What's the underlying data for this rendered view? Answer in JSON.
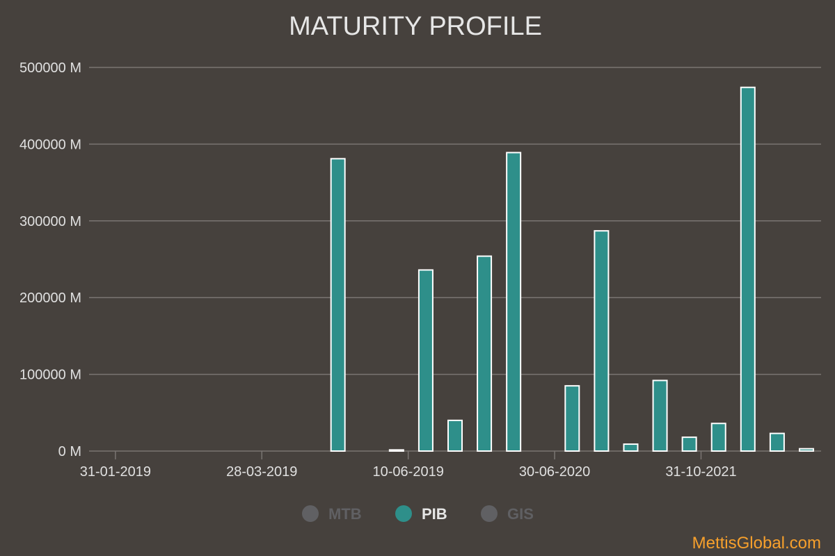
{
  "colors": {
    "background": "#46413d",
    "grid": "#7a7572",
    "bar_fill": "#2e8f8a",
    "bar_stroke": "#ffffff",
    "legend_inactive": "#606063",
    "text": "#e0e0e0",
    "credit": "#f7a02c"
  },
  "credit": "MettisGlobal.com",
  "chart_data": {
    "type": "bar",
    "title": "MATURITY PROFILE",
    "ylim": [
      0,
      500000
    ],
    "y_ticks": [
      "0 M",
      "100000 M",
      "200000 M",
      "300000 M",
      "400000 M",
      "500000 M"
    ],
    "x_ticks": [
      "31-01-2019",
      "28-03-2019",
      "10-06-2019",
      "30-06-2020",
      "31-10-2021"
    ],
    "grid": true,
    "legend_position": "bottom-center",
    "legend": [
      {
        "name": "MTB",
        "active": false,
        "icon": "circle-marker-icon"
      },
      {
        "name": "PIB",
        "active": true,
        "icon": "circle-marker-icon"
      },
      {
        "name": "GIS",
        "active": false,
        "icon": "circle-marker-icon"
      }
    ],
    "series": [
      {
        "name": "PIB",
        "values": [
          0,
          0,
          0,
          0,
          0,
          0,
          0,
          0,
          381000,
          0,
          1500,
          236000,
          40000,
          254000,
          389000,
          0,
          85000,
          287000,
          9000,
          92000,
          18000,
          36000,
          474000,
          23000,
          3000
        ]
      }
    ]
  }
}
